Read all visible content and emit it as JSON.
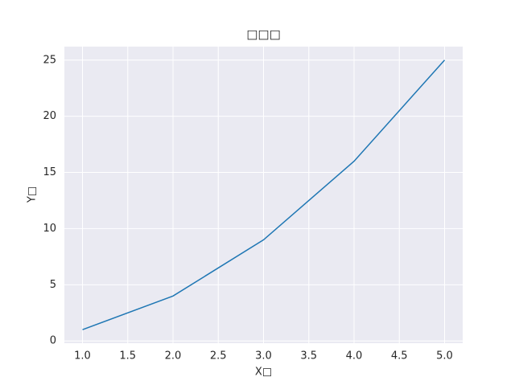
{
  "chart_data": {
    "type": "line",
    "title": "□□□",
    "x_label": "X□",
    "y_label": "Y□",
    "x": [
      1,
      2,
      3,
      4,
      5
    ],
    "series": [
      {
        "color": "#1f77b4",
        "values": [
          1,
          4,
          9,
          16,
          25
        ]
      }
    ],
    "xlim": [
      0.8,
      5.2
    ],
    "xticks": [
      {
        "value": 1,
        "label": "1.0"
      },
      1.5,
      {
        "value": 2,
        "label": "2.0"
      },
      2.5,
      {
        "value": 3,
        "label": "3.0"
      },
      3.5,
      {
        "value": 4,
        "label": "4.0"
      },
      4.5,
      {
        "value": 5,
        "label": "5.0"
      }
    ],
    "ylim": [
      -0.2,
      26.2
    ],
    "yticks": [
      0,
      5,
      10,
      15,
      20,
      25
    ],
    "grid": true
  }
}
